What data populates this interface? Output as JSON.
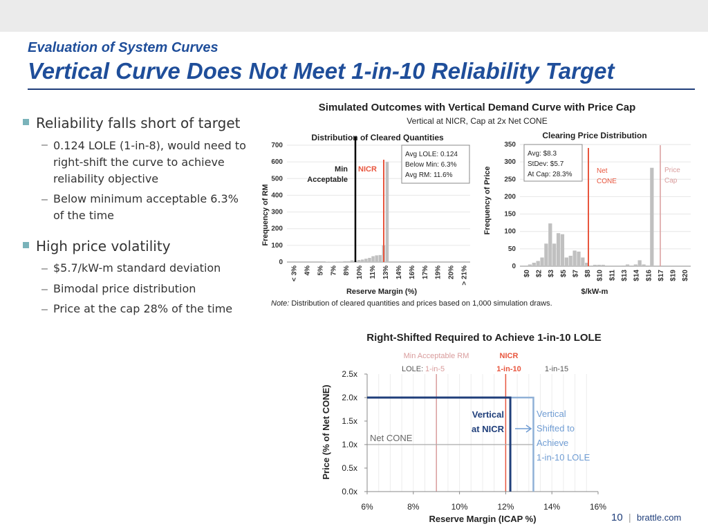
{
  "header": {
    "subtitle": "Evaluation of System Curves",
    "title": "Vertical Curve Does Not Meet 1-in-10 Reliability Target"
  },
  "bullets": [
    {
      "text": "Reliability falls short of target",
      "subs": [
        "0.124 LOLE (1-in-8), would need to right-shift the curve to achieve reliability objective",
        "Below minimum acceptable 6.3% of the time"
      ]
    },
    {
      "text": "High price volatility",
      "subs": [
        "$5.7/kW-m standard deviation",
        "Bimodal price distribution",
        "Price at the cap 28% of the time"
      ]
    }
  ],
  "top_section": {
    "title": "Simulated Outcomes with Vertical Demand Curve with Price Cap",
    "subtitle": "Vertical at NICR, Cap at 2x Net CONE",
    "note_label": "Note:",
    "note_text": "Distribution of cleared quantities and prices based on 1,000 simulation draws."
  },
  "bottom_section": {
    "title": "Right-Shifted Required to Achieve 1-in-10 LOLE"
  },
  "colors": {
    "title_blue": "#1f4e9a",
    "nicr_red": "#e8553d",
    "min_rm_pink": "#d99c9c",
    "bar_gray": "#c0c0c0",
    "curve_navy": "#1f3e7a",
    "shifted_blue": "#8fb0d6"
  },
  "footer": {
    "page": "10",
    "separator": "|",
    "site": "brattle.com"
  },
  "chart_data": [
    {
      "type": "bar",
      "title": "Distribution of Cleared Quantities",
      "xlabel": "Reserve Margin (%)",
      "ylabel": "Frequency of RM",
      "ylim": [
        0,
        700
      ],
      "yticks": [
        "0",
        "100",
        "200",
        "300",
        "400",
        "500",
        "600",
        "700"
      ],
      "tick_labels": [
        "< 3%",
        "4%",
        "5%",
        "7%",
        "8%",
        "10%",
        "11%",
        "13%",
        "14%",
        "16%",
        "17%",
        "19%",
        "20%",
        "> 21%"
      ],
      "values": [
        0,
        0,
        0,
        0,
        0,
        0,
        0,
        0,
        0,
        0,
        0,
        2,
        2,
        2,
        3,
        3,
        5,
        5,
        10,
        8,
        12,
        15,
        20,
        25,
        35,
        40,
        42,
        100,
        600,
        0,
        0,
        0,
        0,
        0,
        0,
        0,
        0,
        0,
        0,
        0,
        0,
        0,
        0,
        0,
        0,
        0,
        0,
        0,
        0,
        0,
        0,
        0
      ],
      "annotations": {
        "min_label": "Min",
        "acceptable_label": "Acceptable",
        "nicr_label": "NICR",
        "stats": [
          "Avg LOLE: 0.124",
          "Below Min: 6.3%",
          "Avg RM: 11.6%"
        ]
      }
    },
    {
      "type": "bar",
      "title": "Clearing Price Distribution",
      "xlabel": "$/kW-m",
      "ylabel": "Frequency of Price",
      "ylim": [
        0,
        350
      ],
      "yticks": [
        "0",
        "50",
        "100",
        "150",
        "200",
        "250",
        "300",
        "350"
      ],
      "tick_labels": [
        "$0",
        "$2",
        "$3",
        "$5",
        "$7",
        "$8",
        "$10",
        "$11",
        "$13",
        "$14",
        "$16",
        "$17",
        "$19",
        "$20"
      ],
      "values": [
        0,
        0,
        5,
        10,
        15,
        25,
        65,
        123,
        65,
        95,
        92,
        25,
        30,
        45,
        42,
        25,
        10,
        0,
        4,
        4,
        4,
        0,
        0,
        0,
        0,
        2,
        5,
        2,
        5,
        17,
        5,
        2,
        283,
        0,
        0,
        0,
        0,
        0,
        0,
        0,
        0,
        0
      ],
      "annotations": {
        "stats": [
          "Avg: $8.3",
          "StDev: $5.7",
          "At Cap: 28.3%"
        ],
        "net_cone_label": [
          "Net",
          "CONE"
        ],
        "price_cap_label": [
          "Price",
          "Cap"
        ]
      }
    },
    {
      "type": "line",
      "xlabel": "Reserve Margin (ICAP %)",
      "ylabel": "Price (% of Net CONE)",
      "xlim": [
        6,
        16
      ],
      "ylim": [
        0,
        2.5
      ],
      "xticks": [
        "6%",
        "8%",
        "10%",
        "12%",
        "14%",
        "16%"
      ],
      "yticks": [
        "0.0x",
        "0.5x",
        "1.0x",
        "1.5x",
        "2.0x",
        "2.5x"
      ],
      "series": [
        {
          "name": "Vertical at NICR",
          "x": [
            6,
            12.2,
            12.2
          ],
          "y": [
            2.0,
            2.0,
            0
          ]
        },
        {
          "name": "Vertical Shifted to Achieve 1-in-10 LOLE",
          "x": [
            12.2,
            13.2,
            13.2
          ],
          "y": [
            2.0,
            2.0,
            0
          ]
        }
      ],
      "reference_lines": {
        "net_cone_y": 1.0,
        "min_acceptable_rm_x": 9.0,
        "nicr_x": 12.0,
        "lole_1in15_x": 13.2
      },
      "labels": {
        "min_rm": "Min Acceptable RM",
        "nicr": "NICR",
        "lole_prefix": "LOLE:",
        "lole_1in5": "1-in-5",
        "lole_1in10": "1-in-10",
        "lole_1in15": "1-in-15",
        "net_cone": "Net CONE",
        "vertical_nicr": [
          "Vertical",
          "at NICR"
        ],
        "shifted": [
          "Vertical",
          "Shifted to",
          "Achieve",
          "1-in-10 LOLE"
        ]
      }
    }
  ]
}
